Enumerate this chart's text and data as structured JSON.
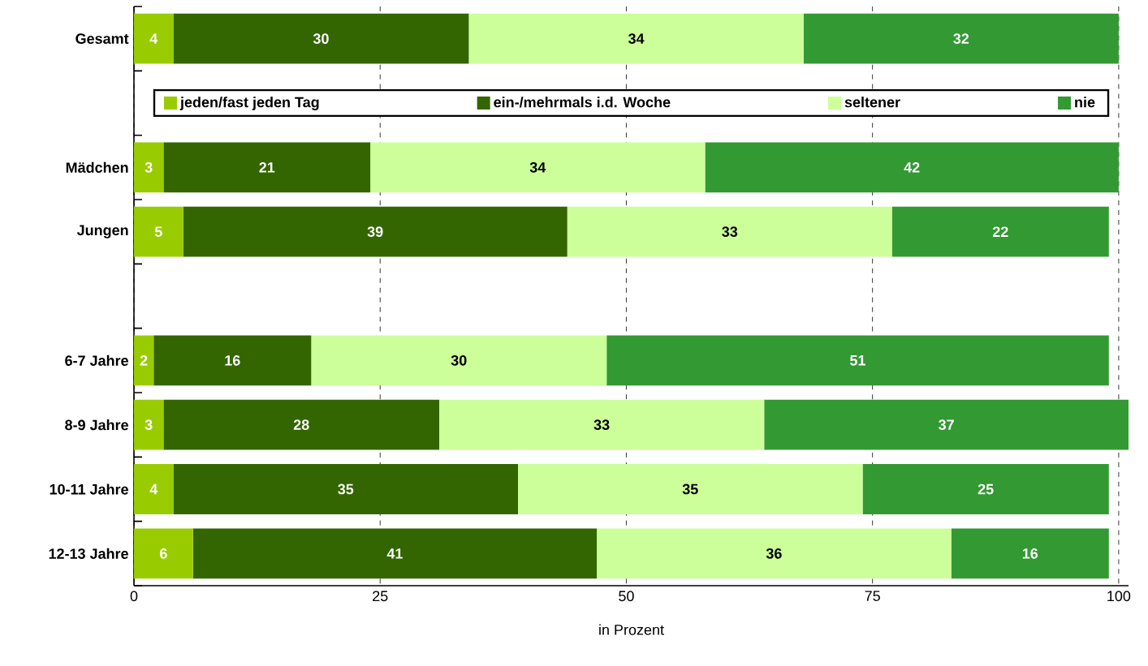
{
  "chart_data": {
    "type": "bar",
    "orientation": "horizontal",
    "stacked": true,
    "xlabel": "in Prozent",
    "categories": [
      "Gesamt",
      null,
      "Mädchen",
      "Jungen",
      null,
      "6-7 Jahre",
      "8-9 Jahre",
      "10-11 Jahre",
      "12-13 Jahre"
    ],
    "series": [
      {
        "name": "jeden/fast jeden Tag",
        "color": "#99cc00",
        "values": [
          4,
          null,
          3,
          5,
          null,
          2,
          3,
          4,
          6
        ]
      },
      {
        "name": "ein-/mehrmals i.d. Woche",
        "color": "#336600",
        "values": [
          30,
          null,
          21,
          39,
          null,
          16,
          28,
          35,
          41
        ]
      },
      {
        "name": "seltener",
        "color": "#ccff99",
        "values": [
          34,
          null,
          34,
          33,
          null,
          30,
          33,
          35,
          36
        ]
      },
      {
        "name": "nie",
        "color": "#339933",
        "values": [
          32,
          null,
          42,
          22,
          null,
          51,
          37,
          25,
          16
        ]
      }
    ],
    "xlim": [
      0,
      101
    ],
    "xticks": [
      0,
      25,
      50,
      75,
      100
    ],
    "grid": "x",
    "legend": "top",
    "data_labels": true
  }
}
